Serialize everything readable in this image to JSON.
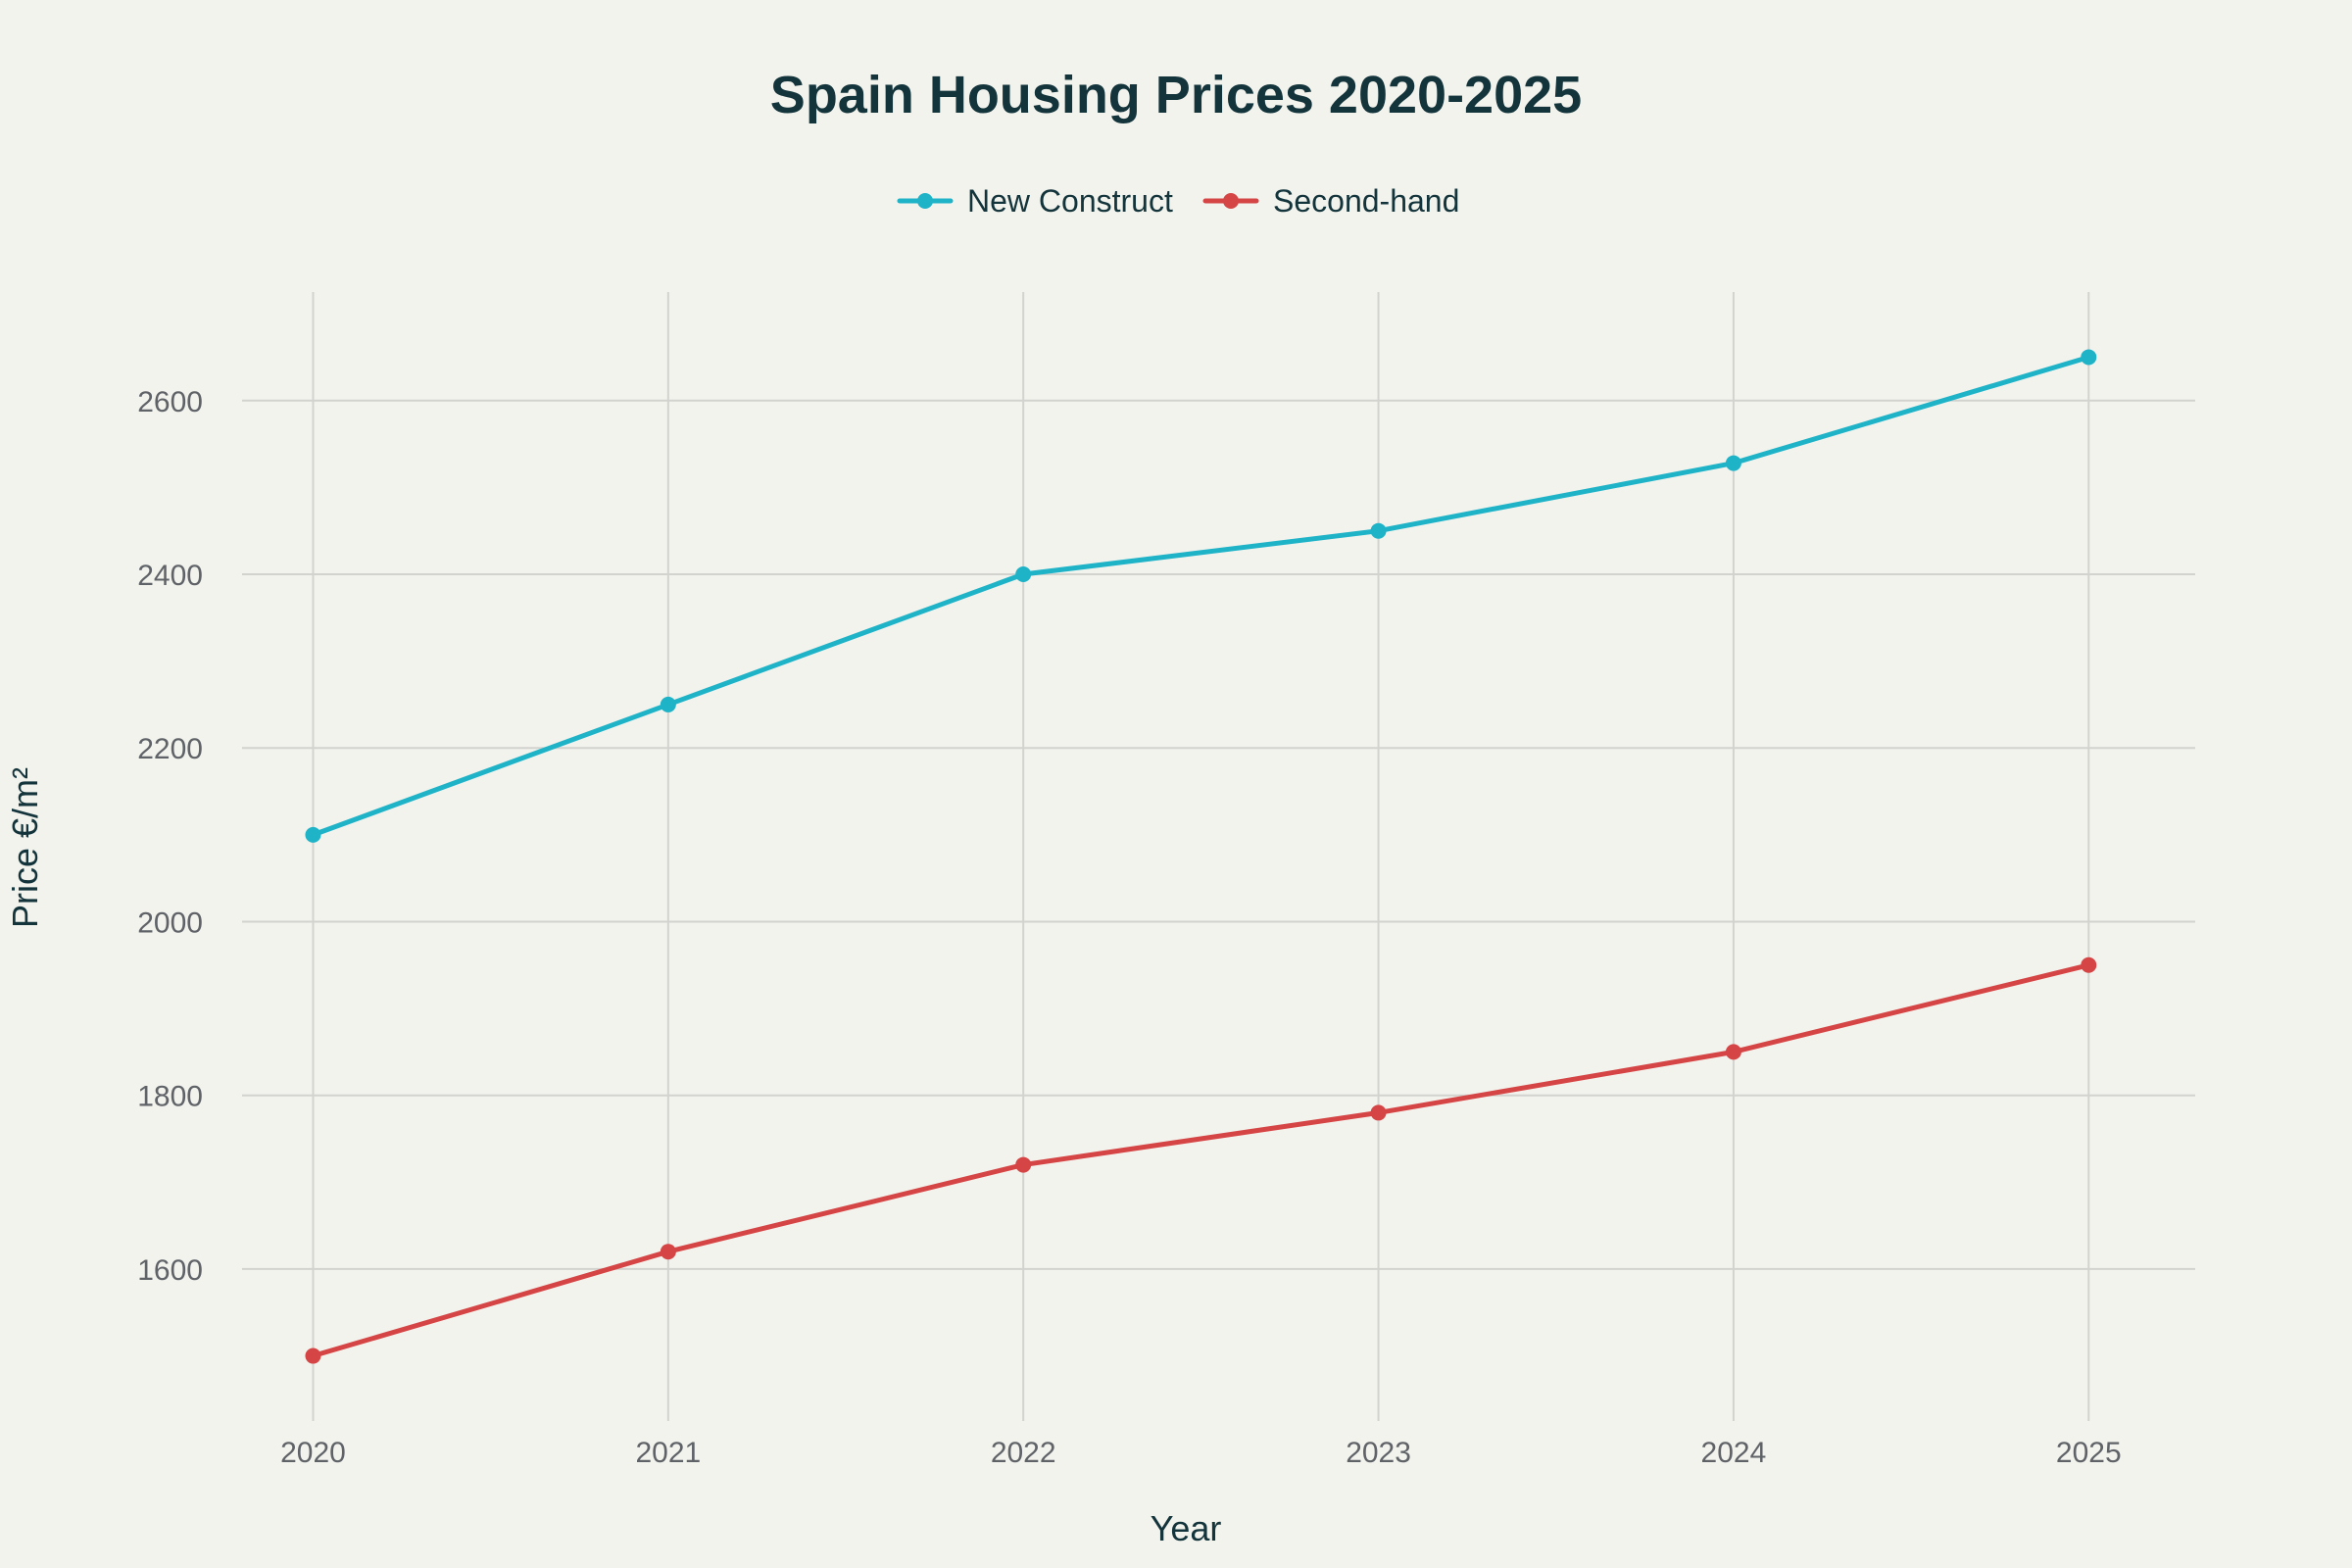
{
  "chart_data": {
    "type": "line",
    "title": "Spain Housing Prices 2020-2025",
    "xlabel": "Year",
    "ylabel": "Price €/m²",
    "x": [
      2020,
      2021,
      2022,
      2023,
      2024,
      2025
    ],
    "x_tick_labels": [
      "2020",
      "2021",
      "2022",
      "2023",
      "2024",
      "2025"
    ],
    "y_ticks": [
      1600,
      1800,
      2000,
      2200,
      2400,
      2600
    ],
    "y_tick_labels": [
      "1600",
      "1800",
      "2000",
      "2200",
      "2400",
      "2600"
    ],
    "ylim": [
      1425,
      2725
    ],
    "xlim": [
      2019.8,
      2025.3
    ],
    "grid": true,
    "legend_position": "top-center",
    "series": [
      {
        "name": "New Construct",
        "color": "#1fb3c8",
        "values": [
          2100,
          2250,
          2400,
          2450,
          2528,
          2650
        ]
      },
      {
        "name": "Second-hand",
        "color": "#d64545",
        "values": [
          1500,
          1620,
          1720,
          1780,
          1850,
          1950
        ]
      }
    ]
  }
}
